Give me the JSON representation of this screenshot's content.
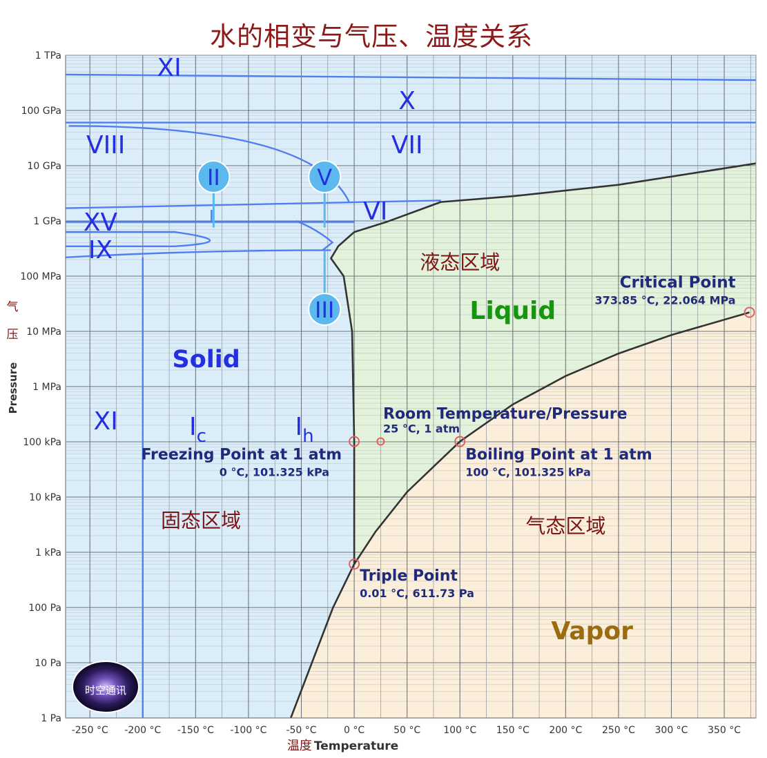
{
  "title": "水的相变与气压、温度关系",
  "chart_data": {
    "type": "phase-diagram",
    "title": "水的相变与气压、温度关系",
    "xlabel_cn": "温度",
    "xlabel": "Temperature",
    "ylabel_cn_1": "气",
    "ylabel_cn_2": "压",
    "ylabel": "Pressure",
    "xlim": [
      -273,
      380
    ],
    "ylog_range_pa": [
      1,
      1000000000000.0
    ],
    "x_ticks": [
      {
        "v": -250,
        "label": "-250 °C"
      },
      {
        "v": -200,
        "label": "-200 °C"
      },
      {
        "v": -150,
        "label": "-150 °C"
      },
      {
        "v": -100,
        "label": "-100 °C"
      },
      {
        "v": -50,
        "label": "-50 °C"
      },
      {
        "v": 0,
        "label": "0 °C"
      },
      {
        "v": 50,
        "label": "50 °C"
      },
      {
        "v": 100,
        "label": "100 °C"
      },
      {
        "v": 150,
        "label": "150 °C"
      },
      {
        "v": 200,
        "label": "200 °C"
      },
      {
        "v": 250,
        "label": "250 °C"
      },
      {
        "v": 300,
        "label": "300 °C"
      },
      {
        "v": 350,
        "label": "350 °C"
      }
    ],
    "y_ticks": [
      {
        "exp": 12,
        "label": "1 TPa"
      },
      {
        "exp": 11,
        "label": "100 GPa"
      },
      {
        "exp": 10,
        "label": "10 GPa"
      },
      {
        "exp": 9,
        "label": "1 GPa"
      },
      {
        "exp": 8,
        "label": "100 MPa"
      },
      {
        "exp": 7,
        "label": "10 MPa"
      },
      {
        "exp": 6,
        "label": "1 MPa"
      },
      {
        "exp": 5,
        "label": "100 kPa"
      },
      {
        "exp": 4,
        "label": "10 kPa"
      },
      {
        "exp": 3,
        "label": "1 kPa"
      },
      {
        "exp": 2,
        "label": "100 Pa"
      },
      {
        "exp": 1,
        "label": "10 Pa"
      },
      {
        "exp": 0,
        "label": "1 Pa"
      }
    ],
    "region_labels": {
      "solid": "Solid",
      "liquid": "Liquid",
      "vapor": "Vapor",
      "solid_cn": "固态区域",
      "liquid_cn": "液态区域",
      "vapor_cn": "气态区域"
    },
    "ice_phases": [
      {
        "label": "XI",
        "t": -175,
        "exp": 11.8
      },
      {
        "label": "X",
        "t": 50,
        "exp": 11.2
      },
      {
        "label": "VIII",
        "t": -235,
        "exp": 10.4
      },
      {
        "label": "VII",
        "t": 50,
        "exp": 10.4
      },
      {
        "label": "VI",
        "t": 20,
        "exp": 9.2
      },
      {
        "label": "XV",
        "t": -240,
        "exp": 9.0
      },
      {
        "label": "IX",
        "t": -240,
        "exp": 8.5
      },
      {
        "label": "XI",
        "t": -235,
        "exp": 5.4
      },
      {
        "label": "Ic",
        "t": -148,
        "exp": 5.3
      },
      {
        "label": "Ih",
        "t": -47,
        "exp": 5.3
      }
    ],
    "bubble_phases": [
      {
        "label": "II",
        "t": -133,
        "exp": 9.8
      },
      {
        "label": "V",
        "t": -28,
        "exp": 9.8
      },
      {
        "label": "III",
        "t": -28,
        "exp": 7.4
      }
    ],
    "points": [
      {
        "name": "Critical Point",
        "detail": "373.85 °C, 22.064 MPa",
        "t": 373.85,
        "p": 22064000
      },
      {
        "name": "Room Temperature/Pressure",
        "detail": "25 °C, 1 atm",
        "t": 25,
        "p": 101325
      },
      {
        "name": "Freezing Point at 1 atm",
        "detail": "0 °C, 101.325 kPa",
        "t": 0,
        "p": 101325
      },
      {
        "name": "Boiling Point at 1 atm",
        "detail": "100 °C, 101.325 kPa",
        "t": 100,
        "p": 101325
      },
      {
        "name": "Triple Point",
        "detail": "0.01 °C, 611.73 Pa",
        "t": 0.01,
        "p": 611.73
      }
    ],
    "vapor_curve": [
      [
        -60,
        1
      ],
      [
        -40,
        10
      ],
      [
        -20,
        100
      ],
      [
        0.01,
        611.73
      ],
      [
        20,
        2339
      ],
      [
        50,
        12350
      ],
      [
        100,
        101325
      ],
      [
        150,
        476000
      ],
      [
        200,
        1554000
      ],
      [
        250,
        3974000
      ],
      [
        300,
        8588000
      ],
      [
        373.85,
        22064000
      ]
    ],
    "melting_curve": [
      [
        0.01,
        611.73
      ],
      [
        0,
        101325
      ],
      [
        -2,
        10000000.0
      ],
      [
        -10,
        100000000.0
      ],
      [
        -22,
        210000000.0
      ],
      [
        -15,
        350000000.0
      ],
      [
        0,
        630000000.0
      ],
      [
        30,
        950000000.0
      ],
      [
        82,
        2200000000.0
      ],
      [
        150,
        2800000000.0
      ],
      [
        250,
        4500000000.0
      ],
      [
        380,
        11000000000.0
      ]
    ],
    "colors": {
      "solid": "#dcedfa",
      "liquid": "#e3f2da",
      "vapor": "#fbefdb",
      "phase_line": "#333333",
      "ice_line": "#4f7ef0",
      "ice_text": "#2430e0",
      "point_text": "#1f2a7a",
      "liquid_text": "#16950f",
      "vapor_text": "#9b6b10",
      "cn_text": "#7c1616",
      "marker": "#e06060",
      "bubble": "#5bb9f0"
    },
    "watermark": "时空通讯"
  }
}
